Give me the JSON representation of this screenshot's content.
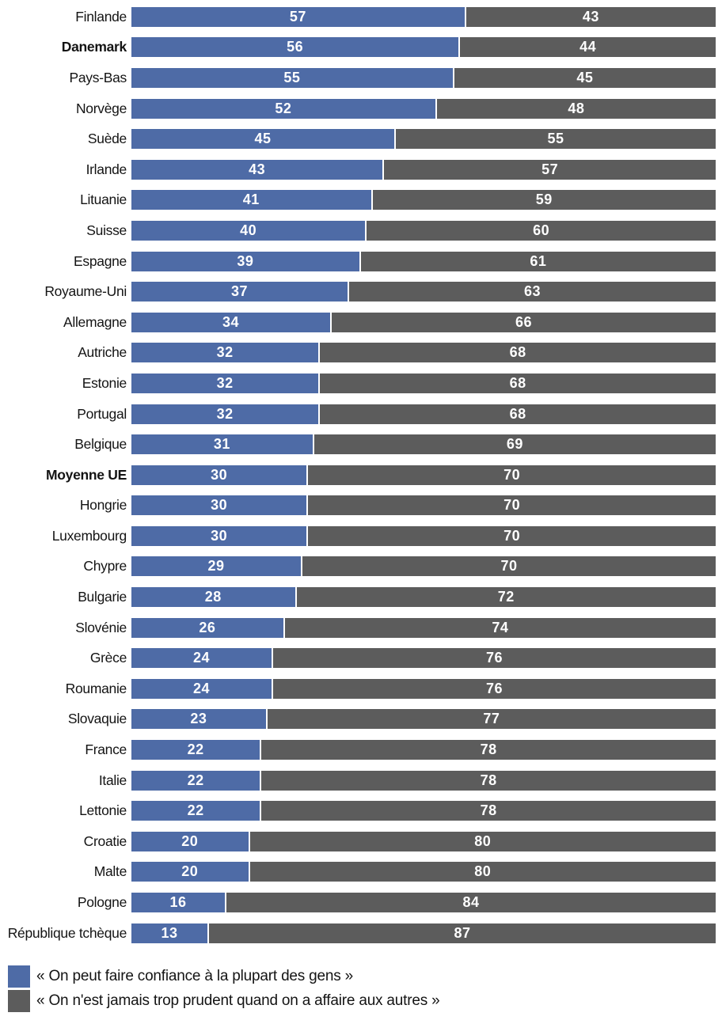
{
  "chart_data": {
    "type": "bar",
    "orientation": "horizontal",
    "stacked": true,
    "xlim": [
      0,
      100
    ],
    "grid": false,
    "value_labels": "inside-center",
    "legend_position": "bottom-left",
    "categories": [
      "Finlande",
      "Danemark",
      "Pays-Bas",
      "Norvège",
      "Suède",
      "Irlande",
      "Lituanie",
      "Suisse",
      "Espagne",
      "Royaume-Uni",
      "Allemagne",
      "Autriche",
      "Estonie",
      "Portugal",
      "Belgique",
      "Moyenne UE",
      "Hongrie",
      "Luxembourg",
      "Chypre",
      "Bulgarie",
      "Slovénie",
      "Grèce",
      "Roumanie",
      "Slovaquie",
      "France",
      "Italie",
      "Lettonie",
      "Croatie",
      "Malte",
      "Pologne",
      "République tchèque"
    ],
    "bold_categories": [
      "Danemark",
      "Moyenne UE"
    ],
    "series": [
      {
        "name": "« On peut faire confiance à la plupart des gens »",
        "color": "#4E6BA6",
        "values": [
          57,
          56,
          55,
          52,
          45,
          43,
          41,
          40,
          39,
          37,
          34,
          32,
          32,
          32,
          31,
          30,
          30,
          30,
          29,
          28,
          26,
          24,
          24,
          23,
          22,
          22,
          22,
          20,
          20,
          16,
          13
        ]
      },
      {
        "name": "« On n'est jamais trop prudent quand on a affaire aux autres »",
        "color": "#5C5C5C",
        "values": [
          43,
          44,
          45,
          48,
          55,
          57,
          59,
          60,
          61,
          63,
          66,
          68,
          68,
          68,
          69,
          70,
          70,
          70,
          70,
          72,
          74,
          76,
          76,
          77,
          78,
          78,
          78,
          80,
          80,
          84,
          87
        ]
      }
    ]
  },
  "colors": {
    "trust_bar": "#4E6BA6",
    "distrust_bar": "#5C5C5C",
    "value_text": "#ffffff",
    "label_text": "#141414"
  }
}
